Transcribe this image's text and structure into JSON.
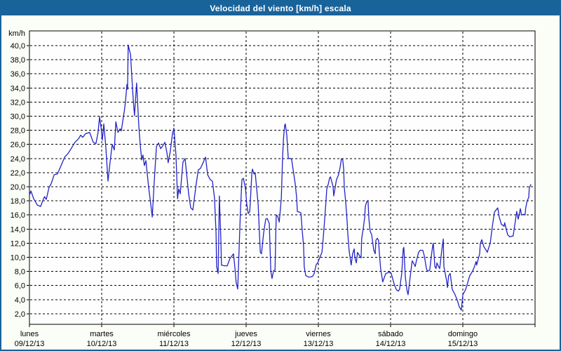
{
  "window": {
    "title": "Velocidad del viento [km/h] escala"
  },
  "colors": {
    "frame": "#19639b",
    "title_text": "#ffffff",
    "chart_bg": "#fbfdf7",
    "plot_bg": "#fefefe",
    "grid": "#000000",
    "axis": "#000000",
    "line": "#2323c6",
    "label_text": "#000000"
  },
  "chart_data": {
    "type": "line",
    "title": "Velocidad del viento [km/h] escala",
    "y_unit_label": "km/h",
    "ylim": [
      0.5,
      42.2
    ],
    "grid": "dashed",
    "legend": "none",
    "y_ticks": [
      {
        "value": 40,
        "label": "40,0"
      },
      {
        "value": 38,
        "label": "38,0"
      },
      {
        "value": 36,
        "label": "36,0"
      },
      {
        "value": 34,
        "label": "34,0"
      },
      {
        "value": 32,
        "label": "32,0"
      },
      {
        "value": 30,
        "label": "30,0"
      },
      {
        "value": 28,
        "label": "28,0"
      },
      {
        "value": 26,
        "label": "26,0"
      },
      {
        "value": 24,
        "label": "24,0"
      },
      {
        "value": 22,
        "label": "22,0"
      },
      {
        "value": 20,
        "label": "20,0"
      },
      {
        "value": 18,
        "label": "18,0"
      },
      {
        "value": 16,
        "label": "16,0"
      },
      {
        "value": 14,
        "label": "14,0"
      },
      {
        "value": 12,
        "label": "12,0"
      },
      {
        "value": 10,
        "label": "10,0"
      },
      {
        "value": 8,
        "label": "8,0"
      },
      {
        "value": 6,
        "label": "6,0"
      },
      {
        "value": 4,
        "label": "4,0"
      },
      {
        "value": 2,
        "label": "2,0"
      }
    ],
    "x_days": [
      {
        "name": "lunes",
        "date": "09/12/13"
      },
      {
        "name": "martes",
        "date": "10/12/13"
      },
      {
        "name": "miércoles",
        "date": "11/12/13"
      },
      {
        "name": "jueves",
        "date": "12/12/13"
      },
      {
        "name": "viernes",
        "date": "13/12/13"
      },
      {
        "name": "sábado",
        "date": "14/12/13"
      },
      {
        "name": "domingo",
        "date": "15/12/13"
      }
    ],
    "hours_total": 168,
    "series": [
      {
        "name": "velocidad del viento",
        "unit": "km/h",
        "points": [
          [
            0,
            18.8
          ],
          [
            0.5,
            19.4
          ],
          [
            1.4,
            18.3
          ],
          [
            2.6,
            17.4
          ],
          [
            3.7,
            17.2
          ],
          [
            4.4,
            18.0
          ],
          [
            5.0,
            18.6
          ],
          [
            5.6,
            18.2
          ],
          [
            6.5,
            19.9
          ],
          [
            7.2,
            20.4
          ],
          [
            8.2,
            21.7
          ],
          [
            9.3,
            21.8
          ],
          [
            10.5,
            23.0
          ],
          [
            11.7,
            24.2
          ],
          [
            12.8,
            24.7
          ],
          [
            14.0,
            25.5
          ],
          [
            15.1,
            26.3
          ],
          [
            16.3,
            26.8
          ],
          [
            17.0,
            27.3
          ],
          [
            17.7,
            27.0
          ],
          [
            18.6,
            27.5
          ],
          [
            20.0,
            27.7
          ],
          [
            21.2,
            26.3
          ],
          [
            22.1,
            26.1
          ],
          [
            22.8,
            27.7
          ],
          [
            23.3,
            29.9
          ],
          [
            23.8,
            28.4
          ],
          [
            24.2,
            26.6
          ],
          [
            24.7,
            28.9
          ],
          [
            25.4,
            25.5
          ],
          [
            26.1,
            20.8
          ],
          [
            26.8,
            23.5
          ],
          [
            27.5,
            26.0
          ],
          [
            28.2,
            25.2
          ],
          [
            28.7,
            29.2
          ],
          [
            29.4,
            27.7
          ],
          [
            30.1,
            28.2
          ],
          [
            30.5,
            27.9
          ],
          [
            31.5,
            30.7
          ],
          [
            31.9,
            32.0
          ],
          [
            32.4,
            34.5
          ],
          [
            32.6,
            33.8
          ],
          [
            32.8,
            40.1
          ],
          [
            33.6,
            38.7
          ],
          [
            34.0,
            35.7
          ],
          [
            34.5,
            32.2
          ],
          [
            34.9,
            30.1
          ],
          [
            35.6,
            34.7
          ],
          [
            36.3,
            28.9
          ],
          [
            36.8,
            26.0
          ],
          [
            37.3,
            23.8
          ],
          [
            37.7,
            24.5
          ],
          [
            38.2,
            23.0
          ],
          [
            38.7,
            23.7
          ],
          [
            39.1,
            22.0
          ],
          [
            39.6,
            19.9
          ],
          [
            40.3,
            17.5
          ],
          [
            40.8,
            15.7
          ],
          [
            41.5,
            21.0
          ],
          [
            42.2,
            25.7
          ],
          [
            42.9,
            26.2
          ],
          [
            43.6,
            25.4
          ],
          [
            44.3,
            25.8
          ],
          [
            45.0,
            26.3
          ],
          [
            45.7,
            24.8
          ],
          [
            46.1,
            23.4
          ],
          [
            46.8,
            25.0
          ],
          [
            47.5,
            27.5
          ],
          [
            48.0,
            28.3
          ],
          [
            48.7,
            24.4
          ],
          [
            49.2,
            18.3
          ],
          [
            49.6,
            19.7
          ],
          [
            50.1,
            19.0
          ],
          [
            51.0,
            23.5
          ],
          [
            51.7,
            24.0
          ],
          [
            52.9,
            19.0
          ],
          [
            53.6,
            17.0
          ],
          [
            54.3,
            16.7
          ],
          [
            55.4,
            20.4
          ],
          [
            56.1,
            22.4
          ],
          [
            56.8,
            22.6
          ],
          [
            57.8,
            23.5
          ],
          [
            58.5,
            24.2
          ],
          [
            59.2,
            21.7
          ],
          [
            60.1,
            21.0
          ],
          [
            60.8,
            20.8
          ],
          [
            61.5,
            18.4
          ],
          [
            62.0,
            13.4
          ],
          [
            62.2,
            8.7
          ],
          [
            62.7,
            7.7
          ],
          [
            63.1,
            18.7
          ],
          [
            63.6,
            12.7
          ],
          [
            63.8,
            8.9
          ],
          [
            64.8,
            8.8
          ],
          [
            65.7,
            8.8
          ],
          [
            66.6,
            9.8
          ],
          [
            67.8,
            10.5
          ],
          [
            68.3,
            8.4
          ],
          [
            68.7,
            6.4
          ],
          [
            69.2,
            5.5
          ],
          [
            70.1,
            16.4
          ],
          [
            70.6,
            21.0
          ],
          [
            71.1,
            21.2
          ],
          [
            71.8,
            19.7
          ],
          [
            72.2,
            17.5
          ],
          [
            72.7,
            16.2
          ],
          [
            73.2,
            16.5
          ],
          [
            73.9,
            22.0
          ],
          [
            74.1,
            22.5
          ],
          [
            74.6,
            21.8
          ],
          [
            75.0,
            22.0
          ],
          [
            76.0,
            17.4
          ],
          [
            76.4,
            13.5
          ],
          [
            76.7,
            10.7
          ],
          [
            77.1,
            10.5
          ],
          [
            77.8,
            13.4
          ],
          [
            78.5,
            15.4
          ],
          [
            79.0,
            15.5
          ],
          [
            79.7,
            14.8
          ],
          [
            80.2,
            8.0
          ],
          [
            80.6,
            7.0
          ],
          [
            81.1,
            8.1
          ],
          [
            81.6,
            8.2
          ],
          [
            82.0,
            16.0
          ],
          [
            82.5,
            15.8
          ],
          [
            83.0,
            15.0
          ],
          [
            83.7,
            18.4
          ],
          [
            84.1,
            24.0
          ],
          [
            84.4,
            26.7
          ],
          [
            84.8,
            28.7
          ],
          [
            85.0,
            28.9
          ],
          [
            85.5,
            27.4
          ],
          [
            86.0,
            24.0
          ],
          [
            86.7,
            24.0
          ],
          [
            87.1,
            23.9
          ],
          [
            87.6,
            22.5
          ],
          [
            88.3,
            20.4
          ],
          [
            88.8,
            18.4
          ],
          [
            89.0,
            16.5
          ],
          [
            89.7,
            16.4
          ],
          [
            90.2,
            16.3
          ],
          [
            90.6,
            14.0
          ],
          [
            91.1,
            11.5
          ],
          [
            91.3,
            8.7
          ],
          [
            91.8,
            7.4
          ],
          [
            92.7,
            7.2
          ],
          [
            93.4,
            7.2
          ],
          [
            94.1,
            7.3
          ],
          [
            94.6,
            7.7
          ],
          [
            95.3,
            9.0
          ],
          [
            95.8,
            9.2
          ],
          [
            96.5,
            10.0
          ],
          [
            97.2,
            10.7
          ],
          [
            97.6,
            12.7
          ],
          [
            98.1,
            15.4
          ],
          [
            98.6,
            18.4
          ],
          [
            98.8,
            19.7
          ],
          [
            99.3,
            20.4
          ],
          [
            99.7,
            21.2
          ],
          [
            100.0,
            21.4
          ],
          [
            100.9,
            20.0
          ],
          [
            101.1,
            18.7
          ],
          [
            102.0,
            21.0
          ],
          [
            102.7,
            21.7
          ],
          [
            103.2,
            22.7
          ],
          [
            103.7,
            24.0
          ],
          [
            104.1,
            23.8
          ],
          [
            104.4,
            22.5
          ],
          [
            104.6,
            20.0
          ],
          [
            105.1,
            17.7
          ],
          [
            105.5,
            15.4
          ],
          [
            105.8,
            13.2
          ],
          [
            106.2,
            11.0
          ],
          [
            106.7,
            9.5
          ],
          [
            106.9,
            8.9
          ],
          [
            107.4,
            10.5
          ],
          [
            107.9,
            11.2
          ],
          [
            108.1,
            10.0
          ],
          [
            108.6,
            9.2
          ],
          [
            109.0,
            10.7
          ],
          [
            109.7,
            10.2
          ],
          [
            110.2,
            9.9
          ],
          [
            110.4,
            12.7
          ],
          [
            110.9,
            14.0
          ],
          [
            111.4,
            15.7
          ],
          [
            111.6,
            17.2
          ],
          [
            112.1,
            17.9
          ],
          [
            112.5,
            18.0
          ],
          [
            112.8,
            15.4
          ],
          [
            113.2,
            13.7
          ],
          [
            113.7,
            13.2
          ],
          [
            114.4,
            11.0
          ],
          [
            114.9,
            10.5
          ],
          [
            115.1,
            12.4
          ],
          [
            115.6,
            12.7
          ],
          [
            116.0,
            12.4
          ],
          [
            116.3,
            10.4
          ],
          [
            116.7,
            8.4
          ],
          [
            117.2,
            7.0
          ],
          [
            117.4,
            6.5
          ],
          [
            118.4,
            7.7
          ],
          [
            119.1,
            7.8
          ],
          [
            119.5,
            7.9
          ],
          [
            120.2,
            7.7
          ],
          [
            121.2,
            6.2
          ],
          [
            121.9,
            5.4
          ],
          [
            122.6,
            5.2
          ],
          [
            123.0,
            5.5
          ],
          [
            123.7,
            7.7
          ],
          [
            124.2,
            11.2
          ],
          [
            124.4,
            11.4
          ],
          [
            124.9,
            7.2
          ],
          [
            125.4,
            5.4
          ],
          [
            125.8,
            4.7
          ],
          [
            126.5,
            7.2
          ],
          [
            127.0,
            8.9
          ],
          [
            127.2,
            9.5
          ],
          [
            128.2,
            8.7
          ],
          [
            128.4,
            9.2
          ],
          [
            129.3,
            10.7
          ],
          [
            129.8,
            11.0
          ],
          [
            130.7,
            11.0
          ],
          [
            131.2,
            10.2
          ],
          [
            131.9,
            8.4
          ],
          [
            132.3,
            8.0
          ],
          [
            133.0,
            8.2
          ],
          [
            133.5,
            10.0
          ],
          [
            134.0,
            11.7
          ],
          [
            134.2,
            12.0
          ],
          [
            134.7,
            8.7
          ],
          [
            135.1,
            8.4
          ],
          [
            135.4,
            9.2
          ],
          [
            135.8,
            8.8
          ],
          [
            136.3,
            8.4
          ],
          [
            137.0,
            11.0
          ],
          [
            137.5,
            12.6
          ],
          [
            137.7,
            8.7
          ],
          [
            138.6,
            6.7
          ],
          [
            138.9,
            5.7
          ],
          [
            139.3,
            7.4
          ],
          [
            139.8,
            7.7
          ],
          [
            140.5,
            5.4
          ],
          [
            141.2,
            4.9
          ],
          [
            142.1,
            4.0
          ],
          [
            142.8,
            3.0
          ],
          [
            143.5,
            2.5
          ],
          [
            144.0,
            4.7
          ],
          [
            144.9,
            5.4
          ],
          [
            145.6,
            6.4
          ],
          [
            146.3,
            7.4
          ],
          [
            147.2,
            8.0
          ],
          [
            147.9,
            8.7
          ],
          [
            148.4,
            9.4
          ],
          [
            148.6,
            8.9
          ],
          [
            149.6,
            10.5
          ],
          [
            149.8,
            11.9
          ],
          [
            150.3,
            12.5
          ],
          [
            151.0,
            11.5
          ],
          [
            151.9,
            10.9
          ],
          [
            152.1,
            10.7
          ],
          [
            153.1,
            12.0
          ],
          [
            153.8,
            14.4
          ],
          [
            154.5,
            16.4
          ],
          [
            155.4,
            16.9
          ],
          [
            155.6,
            17.0
          ],
          [
            156.1,
            15.7
          ],
          [
            156.8,
            14.7
          ],
          [
            157.7,
            14.4
          ],
          [
            157.9,
            14.9
          ],
          [
            158.9,
            13.2
          ],
          [
            159.6,
            12.9
          ],
          [
            160.3,
            13.0
          ],
          [
            160.7,
            13.0
          ],
          [
            161.4,
            15.0
          ],
          [
            161.9,
            16.5
          ],
          [
            162.4,
            15.4
          ],
          [
            163.1,
            16.9
          ],
          [
            163.5,
            16.0
          ],
          [
            164.2,
            16.1
          ],
          [
            164.7,
            16.0
          ],
          [
            164.9,
            17.0
          ],
          [
            165.4,
            18.0
          ],
          [
            165.9,
            18.5
          ],
          [
            166.1,
            19.9
          ],
          [
            166.6,
            20.3
          ]
        ]
      }
    ]
  }
}
